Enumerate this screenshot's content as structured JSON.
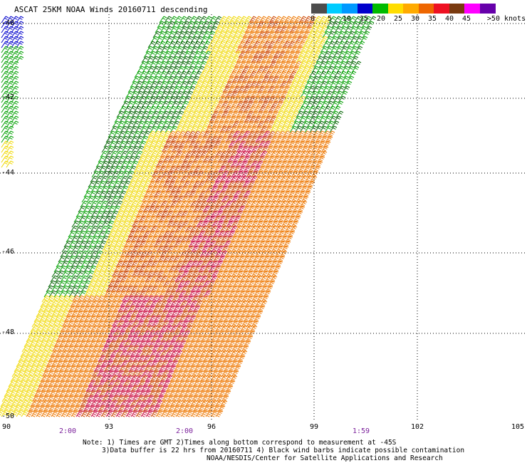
{
  "title": "ASCAT 25KM NOAA Winds 20160711 descending",
  "legend": {
    "unit_label": ">50 knots",
    "ticks": [
      "0",
      "5",
      "10",
      "15",
      "20",
      "25",
      "30",
      "35",
      "40",
      "45"
    ],
    "colors": [
      "#4d4d4d",
      "#00ccff",
      "#0099ff",
      "#0000cc",
      "#00bb00",
      "#ffdd00",
      "#ffaa00",
      "#ee6600",
      "#ee1122",
      "#7a3a10",
      "#ff00ff",
      "#6600aa"
    ]
  },
  "map": {
    "lat_labels": [
      "-40",
      "-42",
      "-44",
      "-46",
      "-48",
      "-50"
    ],
    "lon_labels": [
      "90",
      "93",
      "96",
      "99",
      "102",
      "105"
    ],
    "time_labels": [
      "2:00",
      "2:00",
      "1:59"
    ],
    "wind_colors": {
      "green": "#00a000",
      "dark_green": "#006400",
      "yellow": "#f0d800",
      "orange": "#ee7700",
      "dark_orange": "#cc4400",
      "crimson": "#cc1144",
      "blue": "#0000cc"
    }
  },
  "notes": {
    "line1": "Note: 1) Times are GMT 2)Times along bottom correspond to measurement at -45S",
    "line2": "3)Data buffer is 22 hrs from 20160711 4) Black wind barbs indicate possible contamination",
    "line3": "NOAA/NESDIS/Center for Satellite Applications and Research"
  }
}
